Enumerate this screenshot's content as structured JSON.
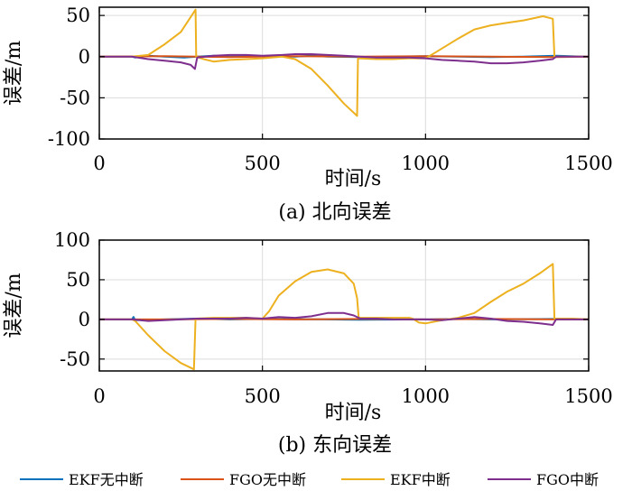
{
  "chart_data": [
    {
      "type": "line",
      "caption": "(a) 北向误差",
      "xlabel": "时间/s",
      "ylabel": "误差/m",
      "xlim": [
        0,
        1500
      ],
      "ylim": [
        -100,
        60
      ],
      "xticks": [
        0,
        500,
        1000,
        1500
      ],
      "yticks": [
        -100,
        -50,
        0,
        50
      ],
      "grid": true,
      "series": [
        {
          "name": "EKF无中断",
          "color": "#0072BD",
          "points": [
            [
              0,
              0
            ],
            [
              100,
              0
            ],
            [
              110,
              -1
            ],
            [
              150,
              1
            ],
            [
              200,
              0
            ],
            [
              260,
              -1
            ],
            [
              300,
              0
            ],
            [
              350,
              1
            ],
            [
              400,
              0
            ],
            [
              500,
              0.5
            ],
            [
              600,
              0
            ],
            [
              650,
              1
            ],
            [
              700,
              0
            ],
            [
              800,
              -0.5
            ],
            [
              900,
              0
            ],
            [
              1000,
              0.5
            ],
            [
              1100,
              0
            ],
            [
              1200,
              -0.5
            ],
            [
              1300,
              0
            ],
            [
              1400,
              1
            ],
            [
              1500,
              0
            ]
          ]
        },
        {
          "name": "FGO无中断",
          "color": "#D95319",
          "points": [
            [
              0,
              0
            ],
            [
              200,
              0.5
            ],
            [
              400,
              -0.5
            ],
            [
              600,
              0.5
            ],
            [
              800,
              0
            ],
            [
              1000,
              0.5
            ],
            [
              1200,
              0
            ],
            [
              1400,
              -0.5
            ],
            [
              1500,
              0
            ]
          ]
        },
        {
          "name": "EKF中断",
          "color": "#EDB120",
          "points": [
            [
              0,
              0
            ],
            [
              100,
              0
            ],
            [
              150,
              2
            ],
            [
              200,
              15
            ],
            [
              250,
              30
            ],
            [
              295,
              57
            ],
            [
              297,
              0
            ],
            [
              320,
              -3
            ],
            [
              350,
              -6
            ],
            [
              400,
              -4
            ],
            [
              450,
              -3
            ],
            [
              500,
              -2
            ],
            [
              560,
              0
            ],
            [
              600,
              -3
            ],
            [
              650,
              -15
            ],
            [
              700,
              -35
            ],
            [
              750,
              -57
            ],
            [
              790,
              -72
            ],
            [
              793,
              -2
            ],
            [
              850,
              -3
            ],
            [
              900,
              -3
            ],
            [
              950,
              -2
            ],
            [
              1000,
              -2
            ],
            [
              1030,
              5
            ],
            [
              1100,
              22
            ],
            [
              1150,
              33
            ],
            [
              1200,
              38
            ],
            [
              1250,
              41
            ],
            [
              1300,
              44
            ],
            [
              1360,
              49
            ],
            [
              1390,
              46
            ],
            [
              1395,
              0
            ],
            [
              1450,
              0
            ],
            [
              1500,
              0
            ]
          ]
        },
        {
          "name": "FGO中断",
          "color": "#7E2F8E",
          "points": [
            [
              0,
              0
            ],
            [
              100,
              0
            ],
            [
              150,
              -3
            ],
            [
              200,
              -5
            ],
            [
              250,
              -7
            ],
            [
              280,
              -10
            ],
            [
              293,
              -15
            ],
            [
              300,
              -1
            ],
            [
              350,
              1
            ],
            [
              400,
              2
            ],
            [
              450,
              2
            ],
            [
              500,
              1
            ],
            [
              560,
              2
            ],
            [
              600,
              3
            ],
            [
              650,
              3
            ],
            [
              700,
              2
            ],
            [
              750,
              1
            ],
            [
              800,
              0
            ],
            [
              850,
              -1
            ],
            [
              900,
              -1
            ],
            [
              950,
              -1
            ],
            [
              1000,
              -2
            ],
            [
              1050,
              -4
            ],
            [
              1100,
              -5
            ],
            [
              1150,
              -6
            ],
            [
              1200,
              -8
            ],
            [
              1250,
              -8
            ],
            [
              1300,
              -7
            ],
            [
              1350,
              -5
            ],
            [
              1390,
              -3
            ],
            [
              1400,
              0
            ],
            [
              1500,
              0
            ]
          ]
        }
      ]
    },
    {
      "type": "line",
      "caption": "(b) 东向误差",
      "xlabel": "时间/s",
      "ylabel": "误差/m",
      "xlim": [
        0,
        1500
      ],
      "ylim": [
        -65,
        100
      ],
      "xticks": [
        0,
        500,
        1000,
        1500
      ],
      "yticks": [
        -50,
        0,
        50,
        100
      ],
      "grid": true,
      "series": [
        {
          "name": "EKF无中断",
          "color": "#0072BD",
          "points": [
            [
              0,
              0
            ],
            [
              100,
              0
            ],
            [
              105,
              3
            ],
            [
              110,
              -1
            ],
            [
              200,
              0
            ],
            [
              300,
              1
            ],
            [
              400,
              0
            ],
            [
              500,
              0.5
            ],
            [
              700,
              0
            ],
            [
              800,
              -0.5
            ],
            [
              1000,
              0
            ],
            [
              1100,
              0.5
            ],
            [
              1200,
              0
            ],
            [
              1400,
              0.5
            ],
            [
              1500,
              0
            ]
          ]
        },
        {
          "name": "FGO无中断",
          "color": "#D95319",
          "points": [
            [
              0,
              0
            ],
            [
              200,
              0
            ],
            [
              400,
              0.5
            ],
            [
              600,
              0
            ],
            [
              800,
              0.5
            ],
            [
              1000,
              0
            ],
            [
              1200,
              0.5
            ],
            [
              1400,
              0
            ],
            [
              1500,
              0
            ]
          ]
        },
        {
          "name": "EKF中断",
          "color": "#EDB120",
          "points": [
            [
              0,
              0
            ],
            [
              100,
              0
            ],
            [
              110,
              -2
            ],
            [
              150,
              -20
            ],
            [
              200,
              -40
            ],
            [
              250,
              -55
            ],
            [
              290,
              -63
            ],
            [
              295,
              1
            ],
            [
              350,
              2
            ],
            [
              400,
              2
            ],
            [
              450,
              2
            ],
            [
              500,
              1
            ],
            [
              520,
              10
            ],
            [
              550,
              30
            ],
            [
              600,
              48
            ],
            [
              650,
              60
            ],
            [
              700,
              63
            ],
            [
              750,
              58
            ],
            [
              780,
              45
            ],
            [
              790,
              27
            ],
            [
              795,
              2
            ],
            [
              850,
              2
            ],
            [
              900,
              2
            ],
            [
              950,
              2
            ],
            [
              960,
              1
            ],
            [
              980,
              -4
            ],
            [
              1000,
              -5
            ],
            [
              1050,
              -1
            ],
            [
              1100,
              2
            ],
            [
              1150,
              8
            ],
            [
              1200,
              22
            ],
            [
              1250,
              35
            ],
            [
              1300,
              45
            ],
            [
              1350,
              58
            ],
            [
              1390,
              70
            ],
            [
              1395,
              1
            ],
            [
              1450,
              1
            ],
            [
              1500,
              0
            ]
          ]
        },
        {
          "name": "FGO中断",
          "color": "#7E2F8E",
          "points": [
            [
              0,
              0
            ],
            [
              100,
              0
            ],
            [
              150,
              -2
            ],
            [
              200,
              -1
            ],
            [
              250,
              0
            ],
            [
              300,
              1
            ],
            [
              350,
              1
            ],
            [
              400,
              1
            ],
            [
              450,
              2
            ],
            [
              500,
              1
            ],
            [
              550,
              3
            ],
            [
              600,
              2
            ],
            [
              650,
              4
            ],
            [
              700,
              8
            ],
            [
              750,
              8
            ],
            [
              780,
              5
            ],
            [
              800,
              1
            ],
            [
              850,
              1
            ],
            [
              900,
              0
            ],
            [
              950,
              0
            ],
            [
              1000,
              0
            ],
            [
              1050,
              -1
            ],
            [
              1100,
              1
            ],
            [
              1150,
              3
            ],
            [
              1200,
              1
            ],
            [
              1250,
              -2
            ],
            [
              1300,
              -3
            ],
            [
              1350,
              -5
            ],
            [
              1390,
              -7
            ],
            [
              1400,
              0
            ],
            [
              1500,
              0
            ]
          ]
        }
      ]
    }
  ],
  "legend": [
    {
      "label": "EKF无中断",
      "color": "#0072BD"
    },
    {
      "label": "FGO无中断",
      "color": "#D95319"
    },
    {
      "label": "EKF中断",
      "color": "#EDB120"
    },
    {
      "label": "FGO中断",
      "color": "#7E2F8E"
    }
  ]
}
